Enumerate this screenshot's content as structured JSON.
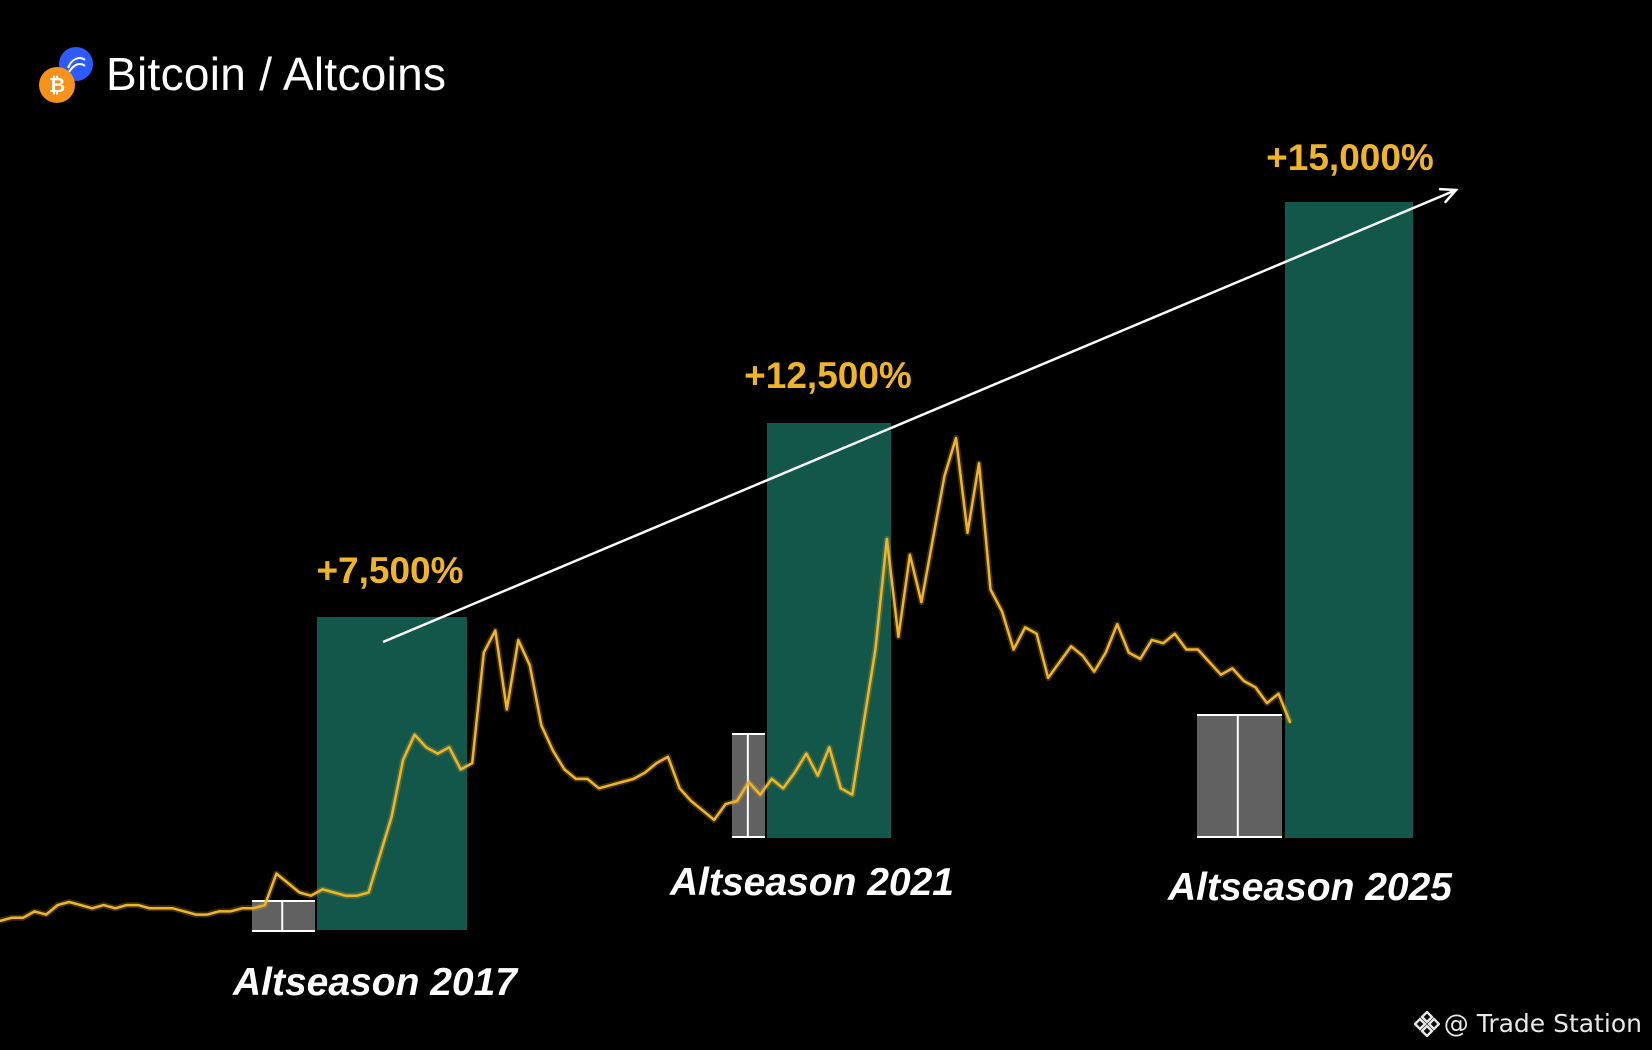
{
  "header": {
    "title": "Bitcoin / Altcoins"
  },
  "icons": {
    "bitcoin": "bitcoin-coin-icon",
    "altcoin": "altcoin-icon",
    "watermark": "binance-diamond-icon"
  },
  "watermark": {
    "text": "@ Trade Station"
  },
  "colors": {
    "background": "#000000",
    "price_line": "#f0b429",
    "rally_box": "#12574a",
    "accumulation_box": "#6b6b6b",
    "gain_label": "#f0b429",
    "season_label": "#ffffff",
    "trend_arrow": "#ffffff",
    "bitcoin_orange": "#f7931a",
    "altcoin_blue": "#2e5bff"
  },
  "chart_data": {
    "type": "line",
    "title": "Bitcoin / Altcoins",
    "xlabel": "",
    "ylabel": "",
    "grid": false,
    "legend": "none",
    "series": [
      {
        "values": [
          7,
          8,
          8,
          10,
          9,
          12,
          13,
          12,
          11,
          12,
          11,
          12,
          12,
          11,
          11,
          11,
          10,
          9,
          9,
          10,
          10,
          11,
          11,
          12,
          22,
          19,
          16,
          15,
          17,
          16,
          15,
          15,
          16,
          28,
          40,
          58,
          66,
          62,
          60,
          62,
          55,
          57,
          92,
          99,
          74,
          96,
          88,
          69,
          61,
          55,
          52,
          52,
          49,
          50,
          51,
          52,
          54,
          57,
          59,
          49,
          45,
          42,
          39,
          44,
          45,
          51,
          47,
          52,
          49,
          54,
          60,
          53,
          62,
          49,
          47,
          70,
          93,
          128,
          97,
          123,
          108,
          128,
          148,
          160,
          130,
          152,
          112,
          105,
          93,
          100,
          98,
          84,
          89,
          94,
          91,
          86,
          92,
          101,
          92,
          90,
          96,
          95,
          98,
          93,
          93,
          89,
          85,
          87,
          83,
          81,
          76,
          79,
          70
        ]
      }
    ],
    "annotations": {
      "gains": [
        {
          "season": "Altseason 2017",
          "label": "+7,500%",
          "value": 7500
        },
        {
          "season": "Altseason 2021",
          "label": "+12,500%",
          "value": 12500
        },
        {
          "season": "Altseason 2025",
          "label": "+15,000%",
          "value": 15000
        }
      ],
      "season_labels": [
        "Altseason 2017",
        "Altseason 2021",
        "Altseason 2025"
      ],
      "trend_arrow": "rising from 2017 peak through 2021 peak toward 2025 target"
    }
  }
}
